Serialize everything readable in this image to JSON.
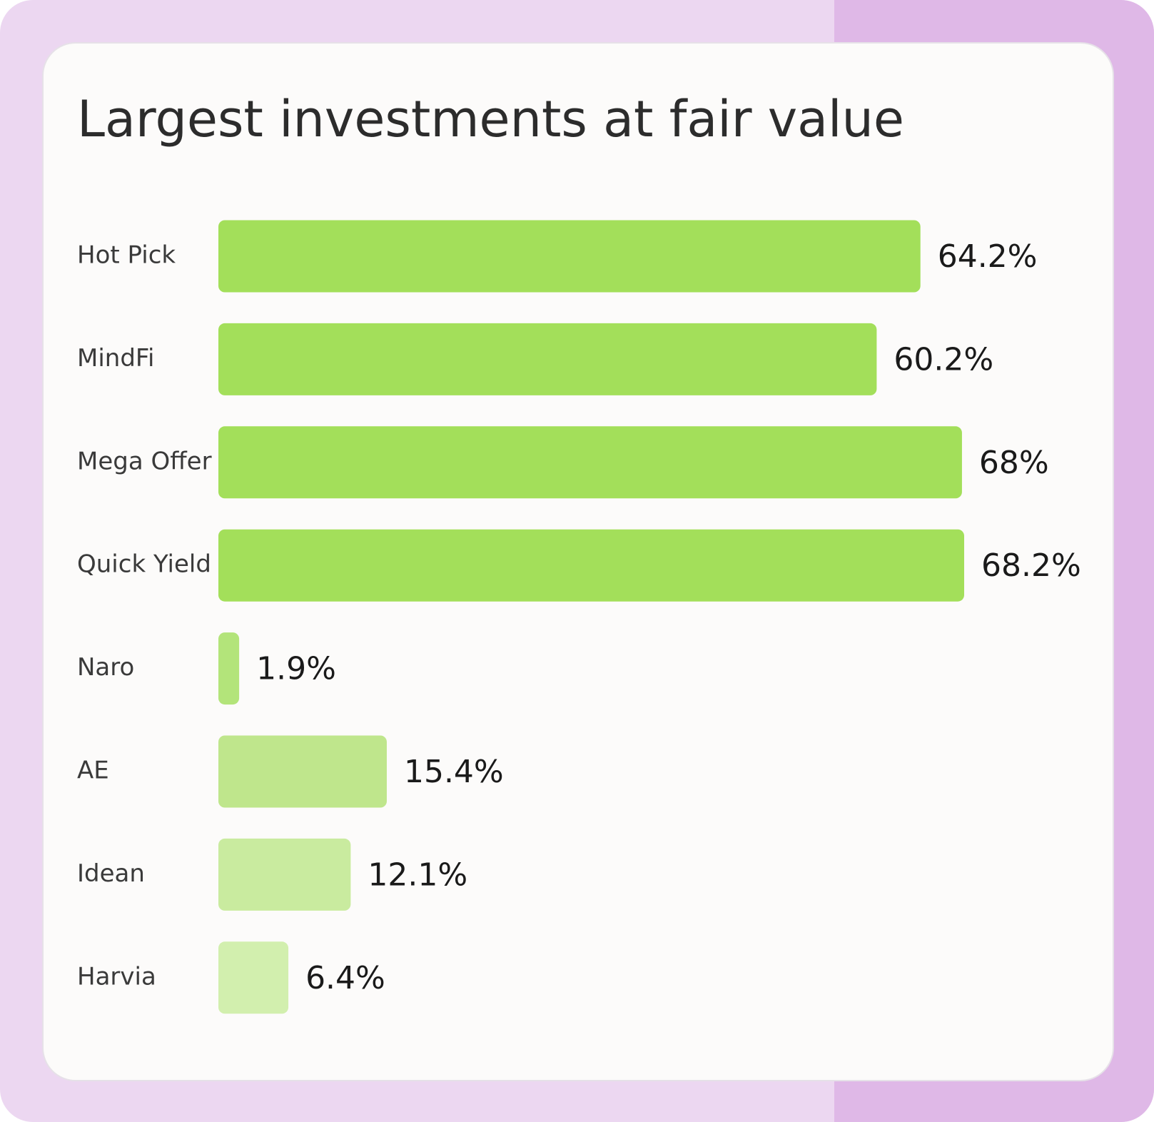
{
  "chart_data": {
    "type": "bar",
    "orientation": "horizontal",
    "title": "Largest investments at fair value",
    "categories": [
      "Hot Pick",
      "MindFi",
      "Mega Offer",
      "Quick Yield",
      "Naro",
      "AE",
      "Idean",
      "Harvia"
    ],
    "values": [
      64.2,
      60.2,
      68,
      68.2,
      1.9,
      15.4,
      12.1,
      6.4
    ],
    "value_labels": [
      "64.2%",
      "60.2%",
      "68%",
      "68.2%",
      "1.9%",
      "15.4%",
      "12.1%",
      "6.4%"
    ],
    "colors": [
      "#a3df5a",
      "#a3df5a",
      "#a3df5a",
      "#a3df5a",
      "#b3e47a",
      "#bfe68c",
      "#c9eb9f",
      "#d2efae"
    ]
  }
}
